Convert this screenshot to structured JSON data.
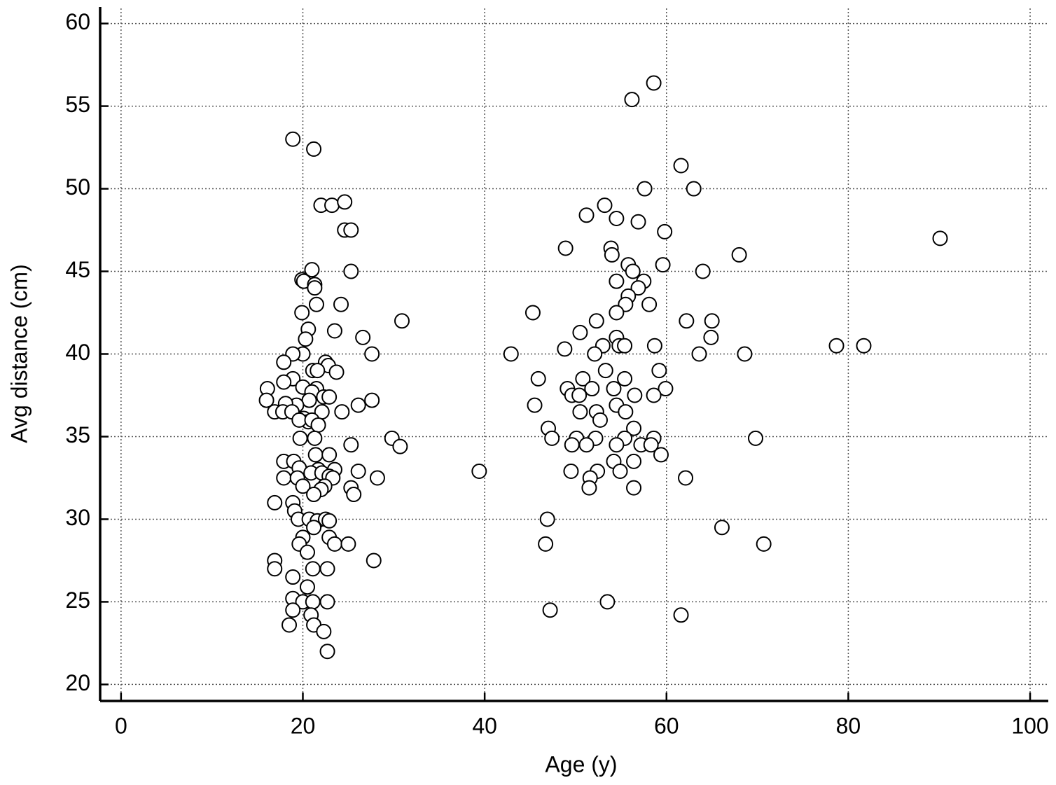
{
  "chart_data": {
    "type": "scatter",
    "x_label": "Age (y)",
    "y_label": "Avg distance (cm)",
    "xlim": [
      -2.3,
      102
    ],
    "ylim": [
      19,
      61
    ],
    "xticks": [
      0,
      20,
      40,
      60,
      80,
      100
    ],
    "yticks": [
      20,
      25,
      30,
      35,
      40,
      45,
      50,
      55,
      60
    ],
    "grid": true,
    "color": "#000000",
    "x": [
      18.9,
      21.2,
      22.0,
      23.2,
      24.6,
      24.6,
      25.3,
      25.3,
      21.0,
      19.9,
      20.1,
      21.3,
      21.3,
      21.5,
      24.2,
      19.9,
      23.5,
      20.6,
      20.3,
      26.6,
      30.9,
      20.0,
      18.9,
      27.6,
      17.9,
      22.5,
      22.8,
      23.7,
      21.1,
      21.6,
      18.9,
      17.9,
      20.0,
      21.5,
      21.0,
      16.1,
      16.0,
      22.3,
      22.9,
      20.7,
      27.6,
      26.1,
      19.3,
      18.1,
      16.9,
      17.8,
      18.8,
      22.1,
      24.3,
      20.1,
      20.6,
      19.6,
      21.0,
      21.7,
      19.7,
      21.3,
      25.3,
      29.8,
      30.7,
      21.4,
      22.9,
      17.9,
      19.0,
      19.6,
      21.7,
      23.5,
      26.1,
      20.9,
      22.1,
      22.9,
      17.9,
      19.4,
      23.3,
      28.2,
      20.0,
      22.4,
      22.0,
      25.3,
      25.6,
      21.2,
      16.9,
      18.9,
      19.1,
      19.5,
      20.7,
      21.6,
      22.5,
      22.9,
      21.2,
      20.0,
      22.9,
      19.6,
      23.5,
      25.0,
      20.5,
      16.9,
      27.8,
      16.9,
      21.1,
      22.7,
      18.9,
      20.5,
      18.9,
      20.0,
      21.1,
      22.7,
      18.9,
      20.9,
      21.2,
      18.5,
      22.3,
      22.7,
      39.4,
      58.6,
      56.2,
      61.6,
      57.6,
      63.0,
      53.2,
      51.2,
      54.5,
      56.9,
      59.8,
      90.1,
      48.9,
      53.9,
      54.0,
      68.0,
      55.8,
      59.6,
      56.3,
      64.0,
      57.5,
      54.5,
      56.9,
      55.8,
      55.5,
      58.1,
      45.3,
      54.5,
      52.3,
      62.2,
      65.0,
      50.5,
      54.5,
      64.9,
      54.8,
      55.4,
      58.7,
      53.0,
      48.8,
      78.7,
      81.7,
      42.9,
      52.1,
      63.6,
      68.6,
      53.3,
      59.2,
      45.9,
      50.8,
      55.4,
      49.1,
      51.8,
      54.2,
      59.9,
      49.6,
      50.4,
      56.5,
      58.6,
      45.5,
      54.5,
      50.5,
      52.3,
      55.5,
      52.7,
      47.0,
      56.4,
      47.4,
      50.1,
      52.2,
      55.4,
      58.6,
      69.8,
      49.6,
      51.2,
      54.5,
      57.2,
      58.3,
      59.4,
      54.2,
      56.4,
      49.5,
      52.4,
      54.9,
      51.6,
      62.1,
      51.5,
      56.4,
      46.9,
      66.1,
      46.7,
      70.7,
      53.5,
      47.2,
      61.6
    ],
    "values": [
      53.0,
      52.4,
      49.0,
      49.0,
      49.2,
      47.5,
      47.5,
      45.0,
      45.1,
      44.5,
      44.4,
      44.2,
      44.0,
      43.0,
      43.0,
      42.5,
      41.4,
      41.5,
      40.9,
      41.0,
      42.0,
      40.0,
      40.0,
      40.0,
      39.5,
      39.5,
      39.3,
      38.9,
      39.0,
      39.0,
      38.5,
      38.3,
      38.0,
      37.9,
      37.7,
      37.9,
      37.2,
      37.4,
      37.4,
      37.2,
      37.2,
      36.9,
      36.9,
      37.0,
      36.5,
      36.5,
      36.5,
      36.5,
      36.5,
      36.1,
      35.9,
      36.0,
      36.0,
      35.7,
      34.9,
      34.9,
      34.5,
      34.9,
      34.4,
      33.9,
      33.9,
      33.5,
      33.5,
      33.1,
      33.0,
      33.0,
      32.9,
      32.8,
      32.8,
      32.6,
      32.5,
      32.5,
      32.5,
      32.5,
      32.0,
      32.0,
      31.8,
      31.9,
      31.5,
      31.5,
      31.0,
      31.0,
      30.5,
      30.0,
      30.0,
      29.9,
      30.0,
      29.9,
      29.5,
      28.9,
      28.9,
      28.5,
      28.5,
      28.5,
      28.0,
      27.5,
      27.5,
      27.0,
      27.0,
      27.0,
      26.5,
      25.9,
      25.2,
      25.0,
      25.0,
      25.0,
      24.5,
      24.2,
      23.6,
      23.6,
      23.2,
      22.0,
      32.9,
      56.4,
      55.4,
      51.4,
      50.0,
      50.0,
      49.0,
      48.4,
      48.2,
      48.0,
      47.4,
      47.0,
      46.4,
      46.4,
      46.0,
      46.0,
      45.4,
      45.4,
      45.0,
      45.0,
      44.4,
      44.4,
      44.0,
      43.5,
      43.0,
      43.0,
      42.5,
      42.5,
      42.0,
      42.0,
      42.0,
      41.3,
      41.0,
      41.0,
      40.5,
      40.5,
      40.5,
      40.5,
      40.3,
      40.5,
      40.5,
      40.0,
      40.0,
      40.0,
      40.0,
      39.0,
      39.0,
      38.5,
      38.5,
      38.5,
      37.9,
      37.9,
      37.9,
      37.9,
      37.5,
      37.5,
      37.5,
      37.5,
      36.9,
      36.9,
      36.5,
      36.5,
      36.5,
      36.0,
      35.5,
      35.5,
      34.9,
      34.9,
      34.9,
      34.9,
      34.9,
      34.9,
      34.5,
      34.5,
      34.5,
      34.5,
      34.5,
      33.9,
      33.5,
      33.5,
      32.9,
      32.9,
      32.9,
      32.5,
      32.5,
      31.9,
      31.9,
      30.0,
      29.5,
      28.5,
      28.5,
      25.0,
      24.5,
      24.2
    ]
  }
}
